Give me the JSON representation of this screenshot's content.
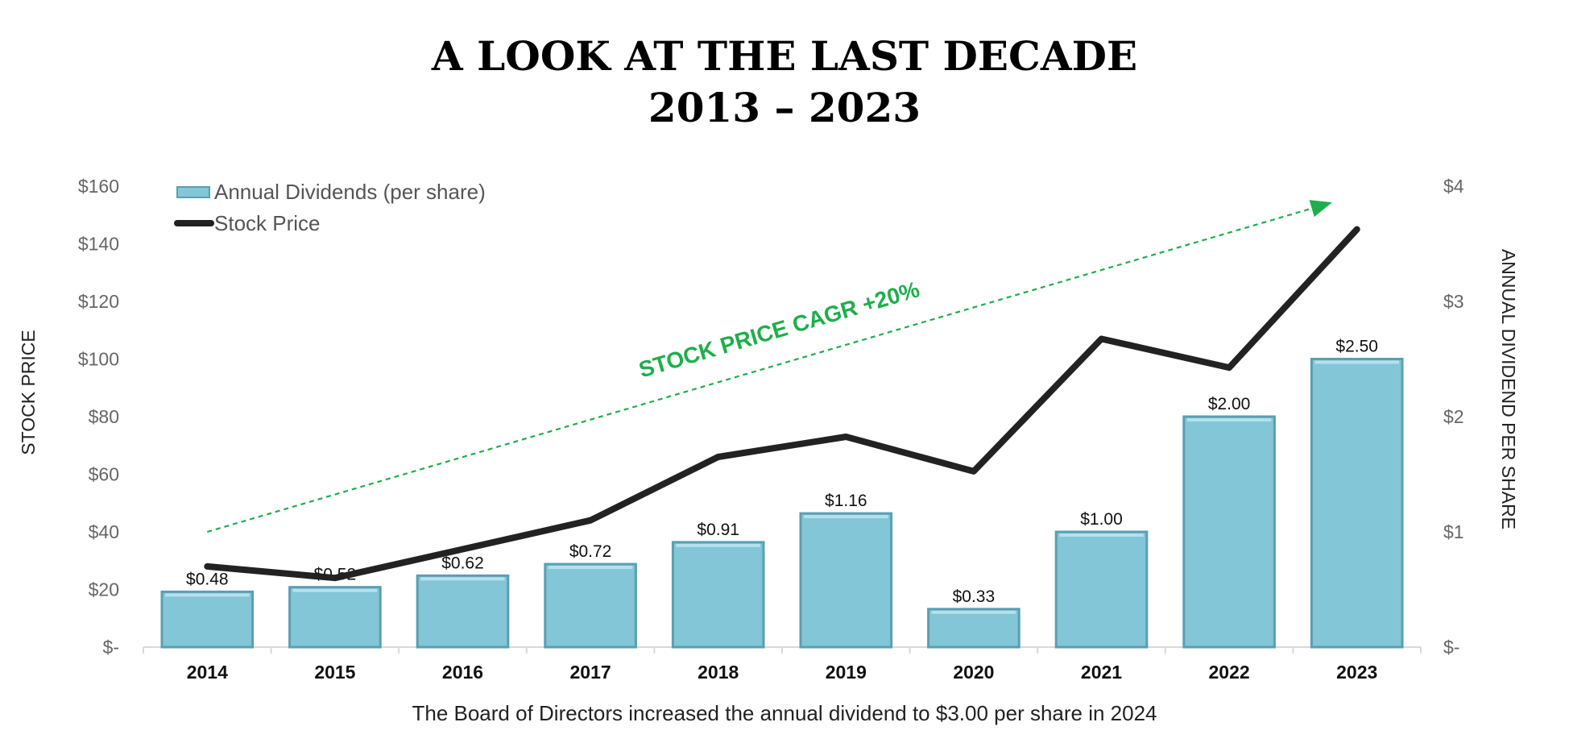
{
  "title_line1": "A LOOK AT THE LAST DECADE",
  "title_line2": "2013 – 2023",
  "footnote": "The Board of Directors increased the annual dividend to $3.00 per share in 2024",
  "annotation": "STOCK PRICE CAGR +20%",
  "colors": {
    "bar": "#82c6d8",
    "bar_edge": "#5a9fb2",
    "line": "#222222",
    "trend": "#1fae4b"
  },
  "chart_data": {
    "type": "bar",
    "categories": [
      "2014",
      "2015",
      "2016",
      "2017",
      "2018",
      "2019",
      "2020",
      "2021",
      "2022",
      "2023"
    ],
    "series": [
      {
        "name": "Annual Dividends (per share)",
        "type": "bar",
        "axis": "right",
        "values": [
          0.48,
          0.52,
          0.62,
          0.72,
          0.91,
          1.16,
          0.33,
          1.0,
          2.0,
          2.5
        ],
        "labels": [
          "$0.48",
          "$0.52",
          "$0.62",
          "$0.72",
          "$0.91",
          "$1.16",
          "$0.33",
          "$1.00",
          "$2.00",
          "$2.50"
        ]
      },
      {
        "name": "Stock Price",
        "type": "line",
        "axis": "left",
        "values": [
          28,
          24,
          34,
          44,
          66,
          73,
          61,
          107,
          97,
          145
        ]
      }
    ],
    "trend": {
      "from": 40,
      "to": 154
    },
    "ylabel": "STOCK PRICE",
    "y2label": "ANNUAL DIVIDEND PER SHARE",
    "ylim": [
      0,
      160
    ],
    "y2lim": [
      0,
      4
    ],
    "yticks": [
      "$-",
      "$20",
      "$40",
      "$60",
      "$80",
      "$100",
      "$120",
      "$140",
      "$160"
    ],
    "y2ticks": [
      "$-",
      "$1",
      "$2",
      "$3",
      "$4"
    ],
    "legend": "top-left",
    "grid": false
  }
}
